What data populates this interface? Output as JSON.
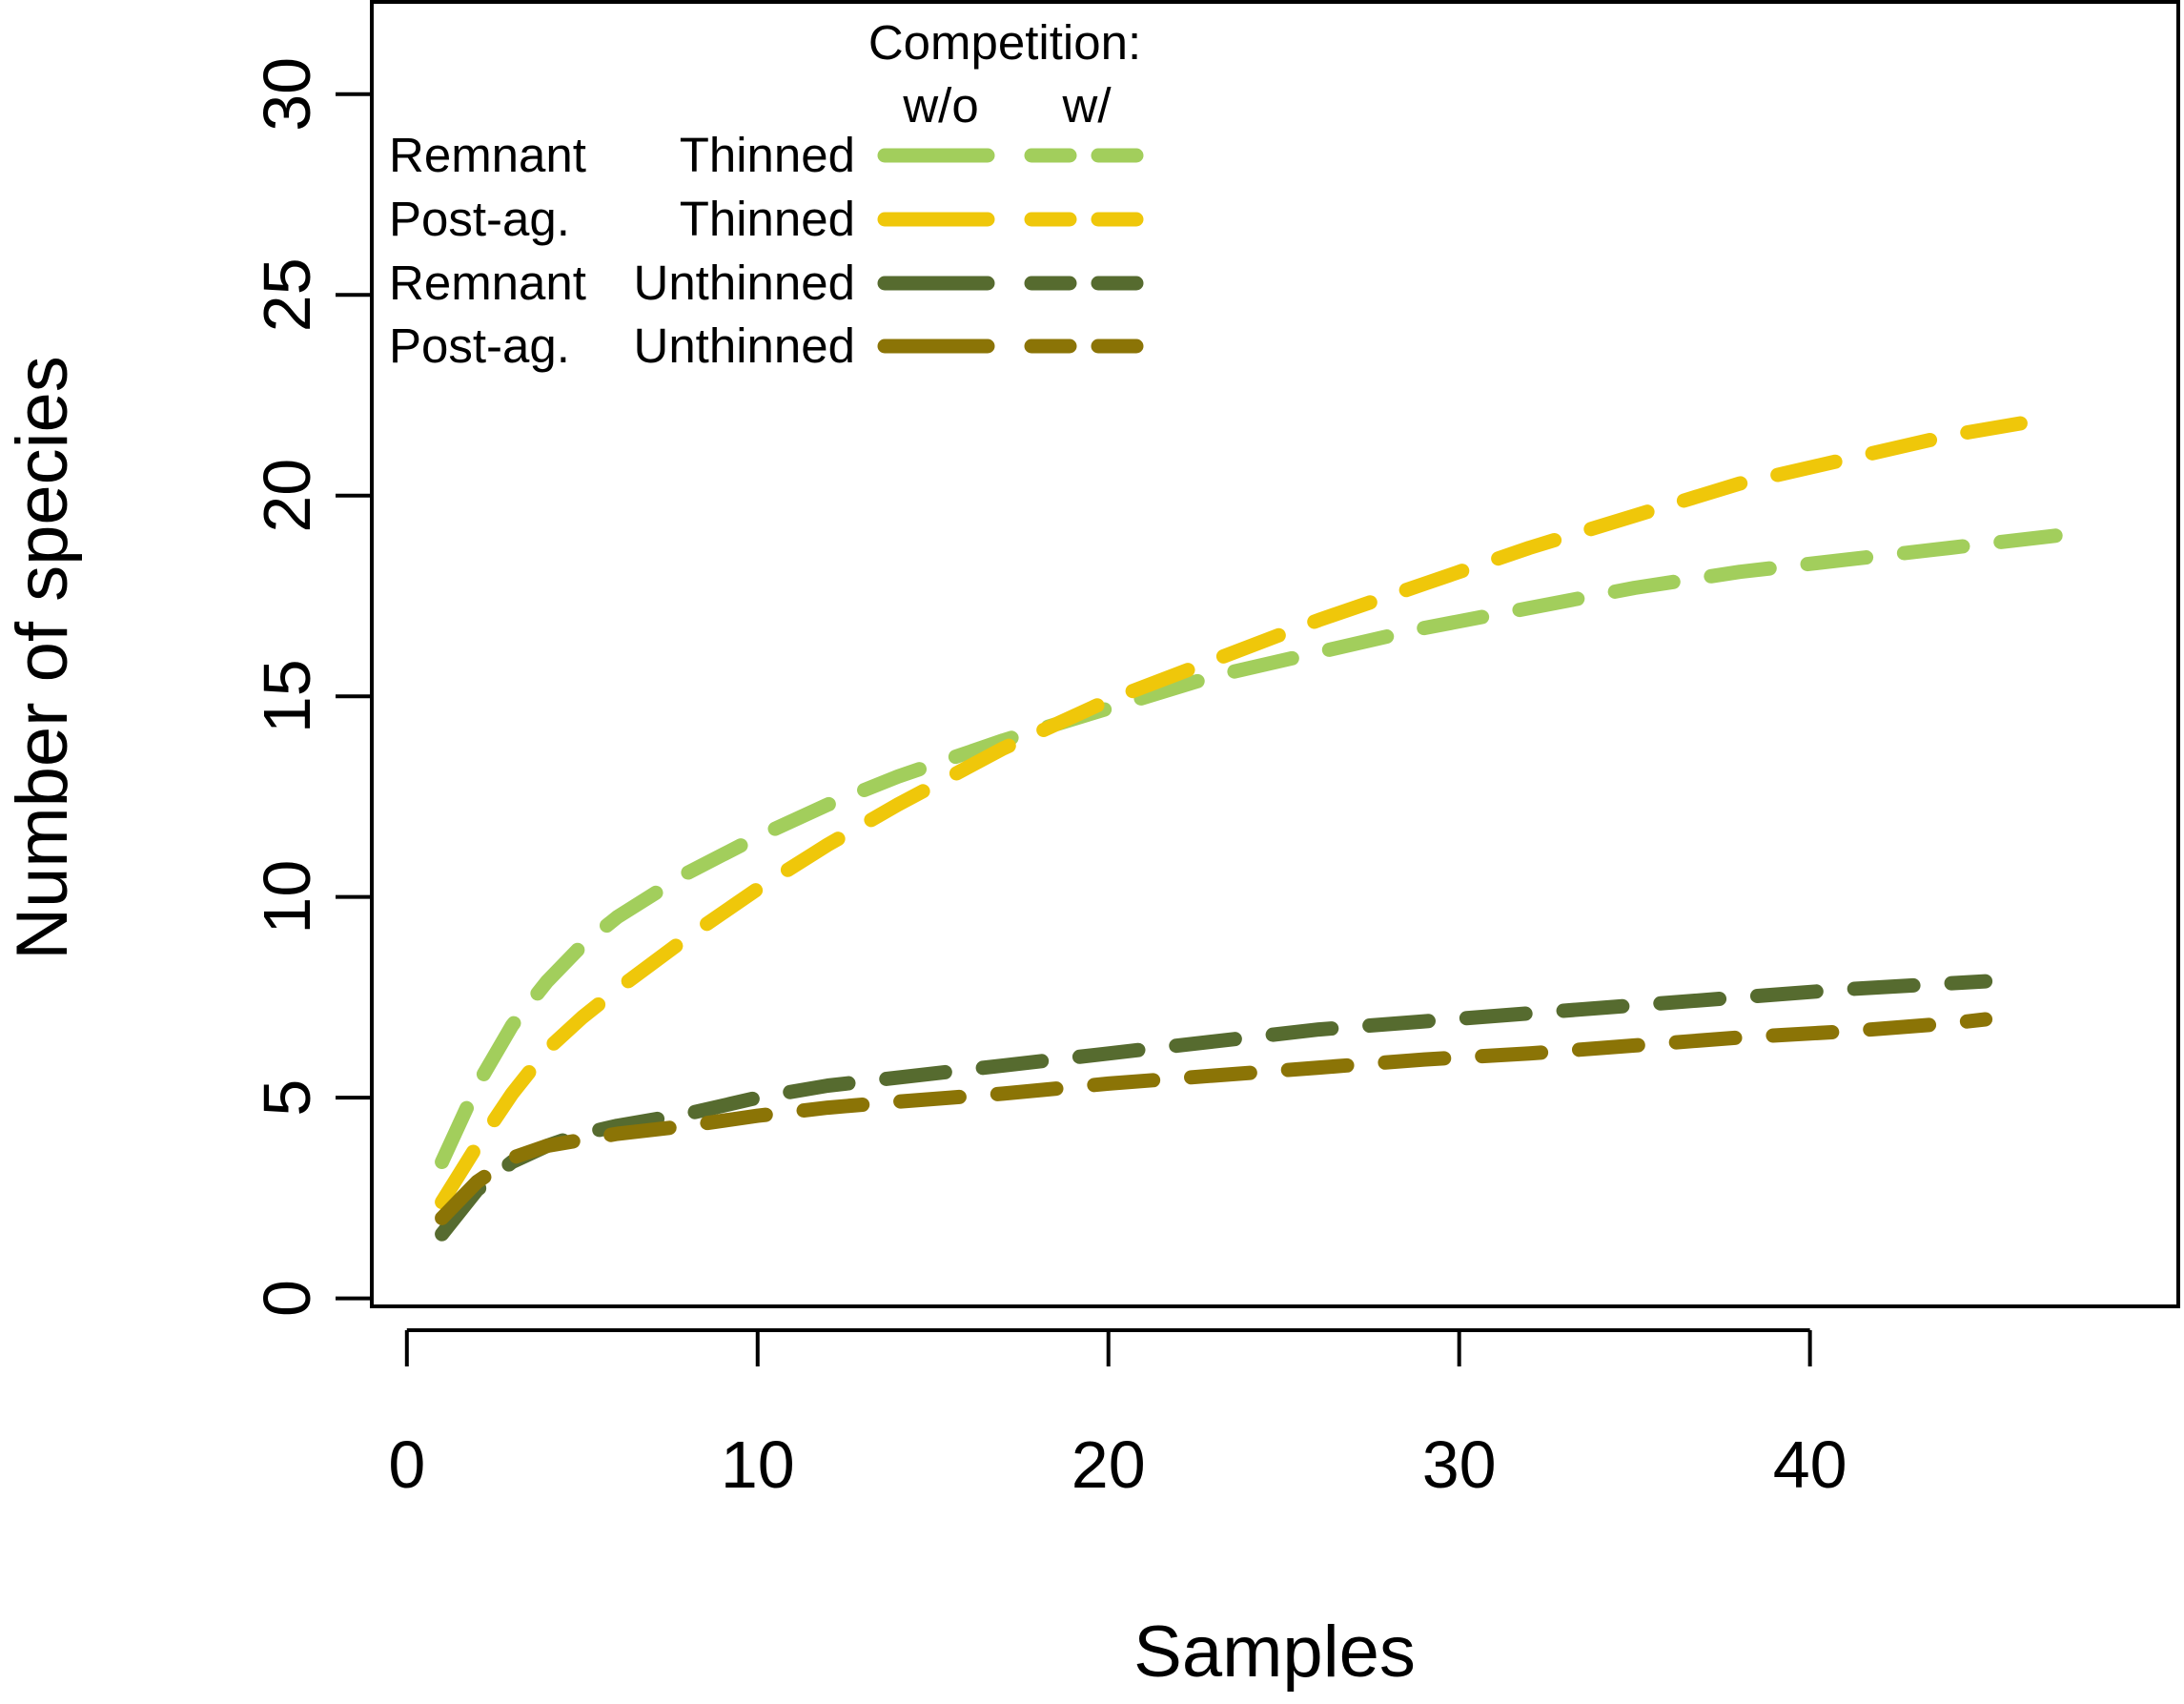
{
  "chart_data": {
    "type": "line",
    "title": "",
    "xlabel": "Samples",
    "ylabel": "Number of species",
    "xlim": [
      -1,
      50.5
    ],
    "ylim": [
      -0.2,
      32.3
    ],
    "x_ticks": [
      0,
      10,
      20,
      30,
      40
    ],
    "y_ticks": [
      0,
      5,
      10,
      15,
      20,
      25,
      30
    ],
    "grid": false,
    "legend": {
      "position": "top-left",
      "header": "Competition:",
      "col_without": "w/o",
      "col_with": "w/",
      "rows": [
        {
          "site": "Remnant",
          "treatment": "Thinned",
          "color": "#A2CE5C"
        },
        {
          "site": "Post-ag.",
          "treatment": "Thinned",
          "color": "#EFC70A"
        },
        {
          "site": "Remnant",
          "treatment": "Unthinned",
          "color": "#566B2F"
        },
        {
          "site": "Post-ag.",
          "treatment": "Unthinned",
          "color": "#8B7406"
        }
      ]
    },
    "series": [
      {
        "color": "#A2CE5C",
        "x": [
          1,
          2,
          3,
          4,
          5,
          6,
          8,
          10,
          12,
          14,
          17,
          20,
          23,
          26,
          29,
          32,
          35,
          38,
          41,
          44,
          47
        ],
        "y": [
          3.4,
          5.3,
          6.8,
          7.9,
          8.8,
          9.5,
          10.6,
          11.5,
          12.3,
          13.0,
          13.9,
          14.7,
          15.5,
          16.1,
          16.7,
          17.2,
          17.7,
          18.1,
          18.4,
          18.7,
          19.0
        ]
      },
      {
        "color": "#EFC70A",
        "x": [
          1,
          2,
          3,
          4,
          5,
          6,
          8,
          10,
          12,
          14,
          17,
          20,
          23,
          26,
          29,
          32,
          35,
          38,
          41,
          44,
          46
        ],
        "y": [
          2.4,
          3.8,
          5.1,
          6.2,
          7.0,
          7.7,
          9.0,
          10.2,
          11.3,
          12.3,
          13.7,
          14.9,
          15.9,
          16.9,
          17.8,
          18.7,
          19.5,
          20.3,
          20.9,
          21.5,
          21.8
        ]
      },
      {
        "color": "#566B2F",
        "x": [
          1,
          2,
          3,
          4,
          5,
          6,
          8,
          10,
          12,
          14,
          17,
          20,
          23,
          26,
          29,
          32,
          35,
          38,
          41,
          44,
          45
        ],
        "y": [
          1.6,
          2.7,
          3.4,
          3.8,
          4.1,
          4.3,
          4.6,
          5.0,
          5.3,
          5.5,
          5.8,
          6.1,
          6.4,
          6.7,
          6.9,
          7.1,
          7.3,
          7.5,
          7.7,
          7.85,
          7.9
        ]
      },
      {
        "color": "#8B7406",
        "x": [
          1,
          2,
          3,
          4,
          5,
          6,
          8,
          10,
          12,
          14,
          17,
          20,
          23,
          26,
          29,
          32,
          35,
          38,
          41,
          44,
          45
        ],
        "y": [
          2.0,
          2.9,
          3.5,
          3.8,
          3.95,
          4.1,
          4.3,
          4.55,
          4.75,
          4.9,
          5.1,
          5.35,
          5.55,
          5.75,
          5.95,
          6.1,
          6.3,
          6.5,
          6.65,
          6.85,
          6.95
        ]
      }
    ]
  }
}
